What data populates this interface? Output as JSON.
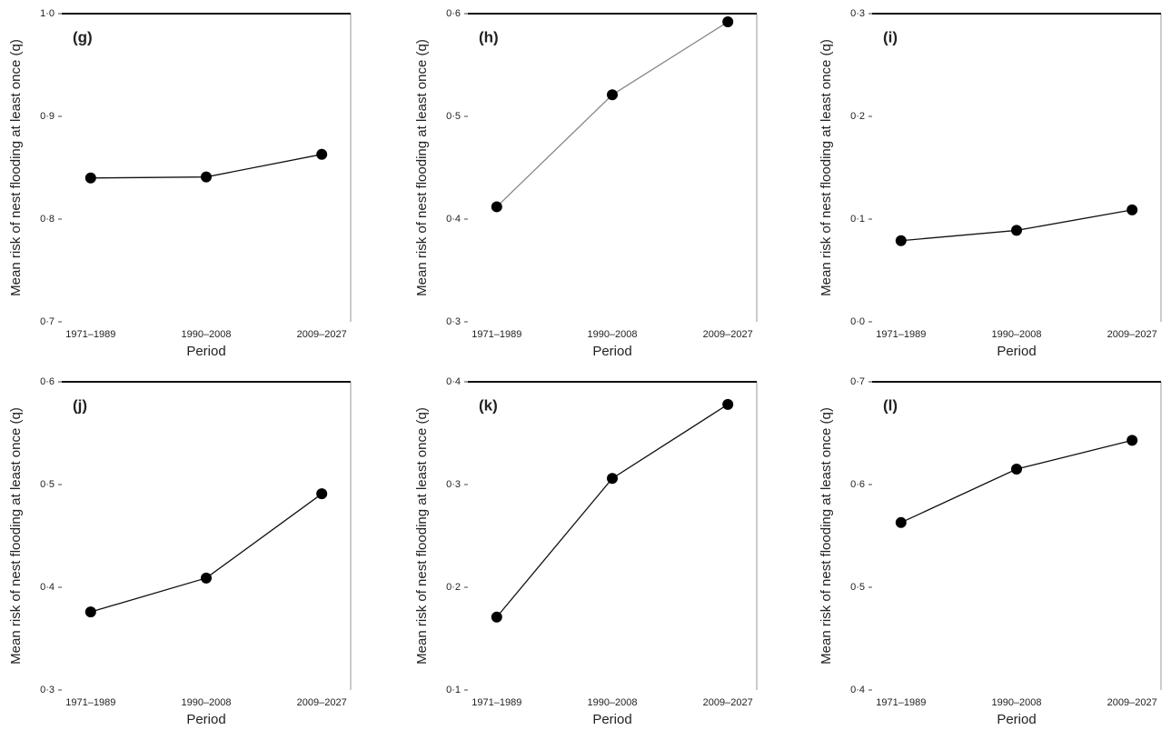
{
  "chart_data": [
    {
      "type": "line",
      "panel_label": "(g)",
      "ylabel": "Mean risk of nest flooding at least once (q)",
      "xlabel": "Period",
      "categories": [
        "1971–1989",
        "1990–2008",
        "2009–2027"
      ],
      "values": [
        0.84,
        0.841,
        0.863
      ],
      "color": "#111111",
      "ylim": [
        0.7,
        1.0
      ],
      "yticks": [
        {
          "value": 0.7,
          "label": "0·7"
        },
        {
          "value": 0.8,
          "label": "0·8"
        },
        {
          "value": 0.9,
          "label": "0·9"
        },
        {
          "value": 1.0,
          "label": "1·0"
        }
      ]
    },
    {
      "type": "line",
      "panel_label": "(h)",
      "ylabel": "Mean risk of nest flooding at least once (q)",
      "xlabel": "Period",
      "categories": [
        "1971–1989",
        "1990–2008",
        "2009–2027"
      ],
      "values": [
        0.412,
        0.521,
        0.592
      ],
      "color": "#888888",
      "ylim": [
        0.3,
        0.6
      ],
      "yticks": [
        {
          "value": 0.3,
          "label": "0·3"
        },
        {
          "value": 0.4,
          "label": "0·4"
        },
        {
          "value": 0.5,
          "label": "0·5"
        },
        {
          "value": 0.6,
          "label": "0·6"
        }
      ]
    },
    {
      "type": "line",
      "panel_label": "(i)",
      "ylabel": "Mean risk of nest flooding at least once (q)",
      "xlabel": "Period",
      "categories": [
        "1971–1989",
        "1990–2008",
        "2009–2027"
      ],
      "values": [
        0.079,
        0.089,
        0.109
      ],
      "color": "#111111",
      "ylim": [
        0.0,
        0.3
      ],
      "yticks": [
        {
          "value": 0.0,
          "label": "0·0"
        },
        {
          "value": 0.1,
          "label": "0·1"
        },
        {
          "value": 0.2,
          "label": "0·2"
        },
        {
          "value": 0.3,
          "label": "0·3"
        }
      ]
    },
    {
      "type": "line",
      "panel_label": "(j)",
      "ylabel": "Mean risk of nest flooding at least once (q)",
      "xlabel": "Period",
      "categories": [
        "1971–1989",
        "1990–2008",
        "2009–2027"
      ],
      "values": [
        0.376,
        0.409,
        0.491
      ],
      "color": "#111111",
      "ylim": [
        0.3,
        0.6
      ],
      "yticks": [
        {
          "value": 0.3,
          "label": "0·3"
        },
        {
          "value": 0.4,
          "label": "0·4"
        },
        {
          "value": 0.5,
          "label": "0·5"
        },
        {
          "value": 0.6,
          "label": "0·6"
        }
      ]
    },
    {
      "type": "line",
      "panel_label": "(k)",
      "ylabel": "Mean risk of nest flooding at least once (q)",
      "xlabel": "Period",
      "categories": [
        "1971–1989",
        "1990–2008",
        "2009–2027"
      ],
      "values": [
        0.171,
        0.306,
        0.378
      ],
      "color": "#111111",
      "ylim": [
        0.1,
        0.4
      ],
      "yticks": [
        {
          "value": 0.1,
          "label": "0·1"
        },
        {
          "value": 0.2,
          "label": "0·2"
        },
        {
          "value": 0.3,
          "label": "0·3"
        },
        {
          "value": 0.4,
          "label": "0·4"
        }
      ]
    },
    {
      "type": "line",
      "panel_label": "(l)",
      "ylabel": "Mean risk of nest flooding at least once (q)",
      "xlabel": "Period",
      "categories": [
        "1971–1989",
        "1990–2008",
        "2009–2027"
      ],
      "values": [
        0.563,
        0.615,
        0.643
      ],
      "color": "#111111",
      "ylim": [
        0.4,
        0.7
      ],
      "yticks": [
        {
          "value": 0.4,
          "label": "0·4"
        },
        {
          "value": 0.5,
          "label": "0·5"
        },
        {
          "value": 0.6,
          "label": "0·6"
        },
        {
          "value": 0.7,
          "label": "0·7"
        }
      ]
    }
  ]
}
